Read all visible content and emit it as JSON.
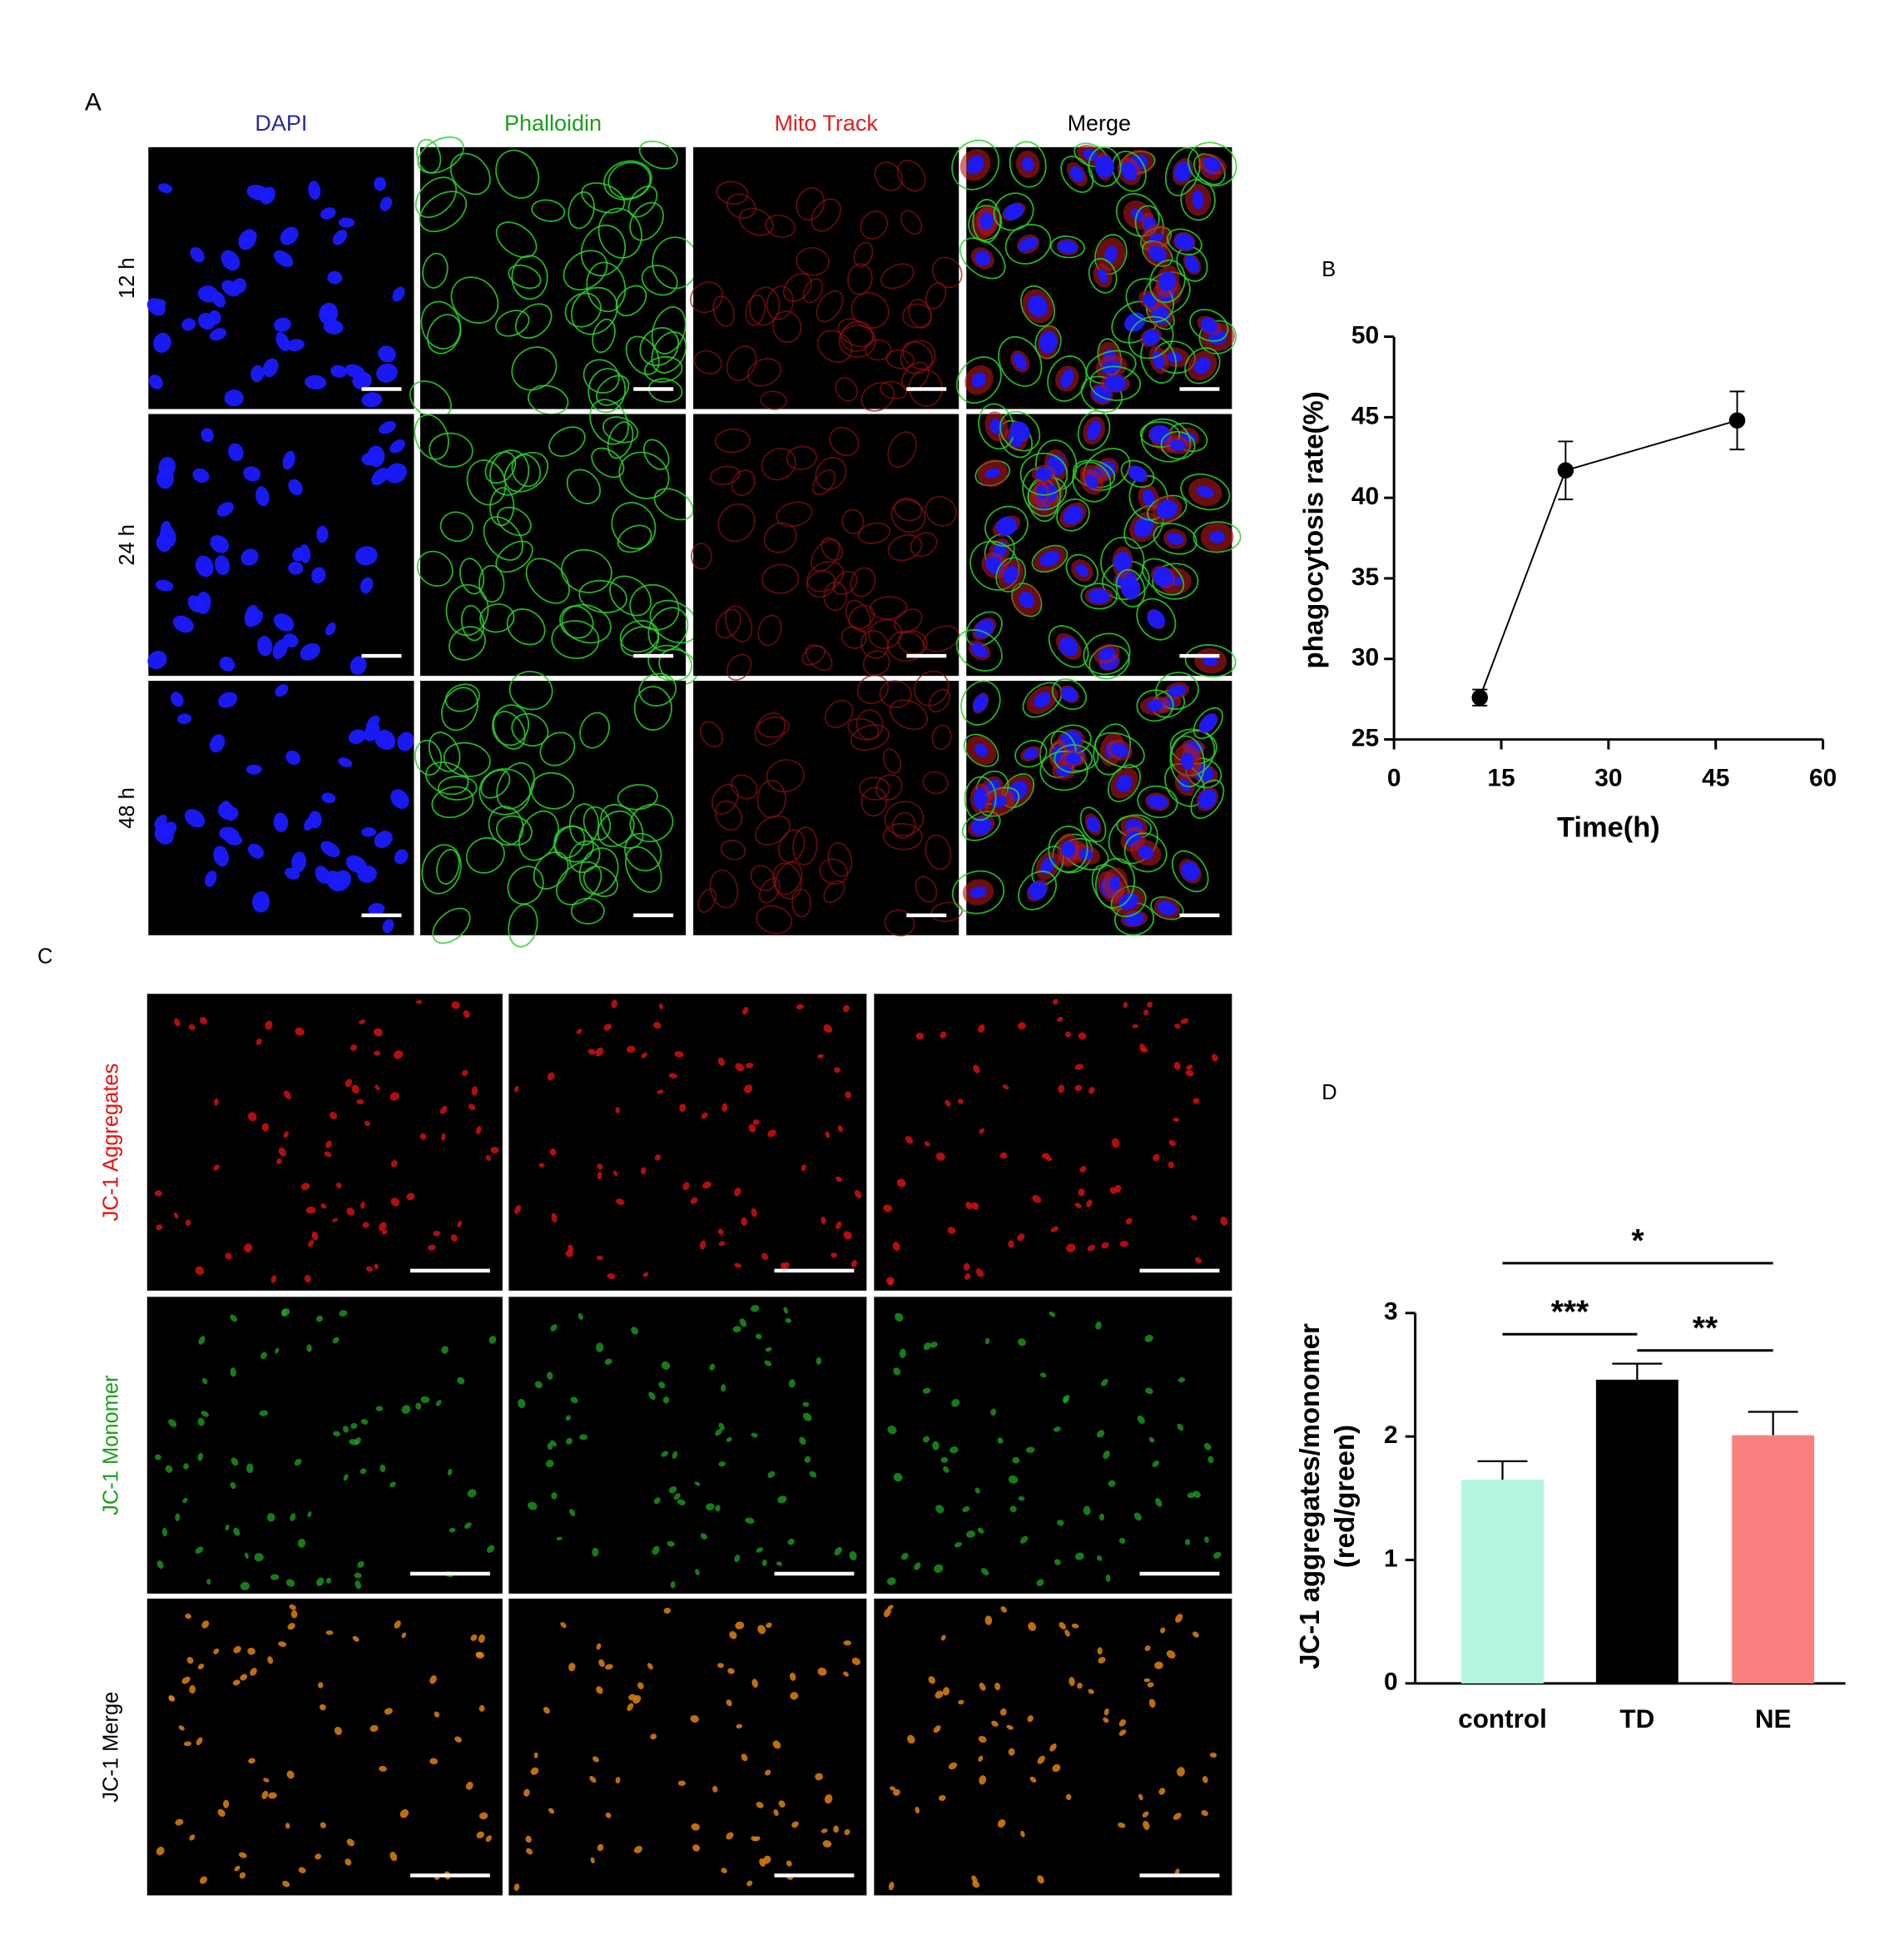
{
  "panels": {
    "A": "A",
    "B": "B",
    "C": "C",
    "D": "D"
  },
  "panel_a": {
    "columns": [
      "DAPI",
      "Phalloidin",
      "Mito Track",
      "Merge"
    ],
    "rows": [
      "12 h",
      "24 h",
      "48 h"
    ]
  },
  "panel_c": {
    "rows": [
      "JC-1 Aggregates",
      "JC-1 Monomer",
      "JC-1 Merge"
    ]
  },
  "chart_data": [
    {
      "type": "line",
      "x": [
        12,
        24,
        48
      ],
      "values": [
        27.6,
        41.7,
        44.8
      ],
      "errors": [
        0.5,
        1.8,
        1.8
      ],
      "color": "#000000",
      "xlabel": "Time(h)",
      "ylabel": "phagocytosis rate(%)",
      "xlim": [
        0,
        60
      ],
      "xticks": [
        0,
        15,
        30,
        45,
        60
      ],
      "ylim": [
        25,
        50
      ],
      "yticks": [
        25,
        30,
        35,
        40,
        45,
        50
      ]
    },
    {
      "type": "bar",
      "categories": [
        "control",
        "TD",
        "NE"
      ],
      "values": [
        1.65,
        2.46,
        2.01
      ],
      "errors": [
        0.15,
        0.13,
        0.19
      ],
      "colors": [
        "#b3f5e0",
        "#000000",
        "#fa8080"
      ],
      "ylabel": [
        "JC-1 aggregates/monomer",
        "(red/green)"
      ],
      "ylim": [
        0,
        3
      ],
      "yticks": [
        0,
        1,
        2,
        3
      ],
      "significance": [
        {
          "label": "*",
          "pair": [
            0,
            2
          ]
        },
        {
          "label": "***",
          "pair": [
            0,
            1
          ]
        },
        {
          "label": "**",
          "pair": [
            1,
            2
          ]
        }
      ]
    }
  ]
}
